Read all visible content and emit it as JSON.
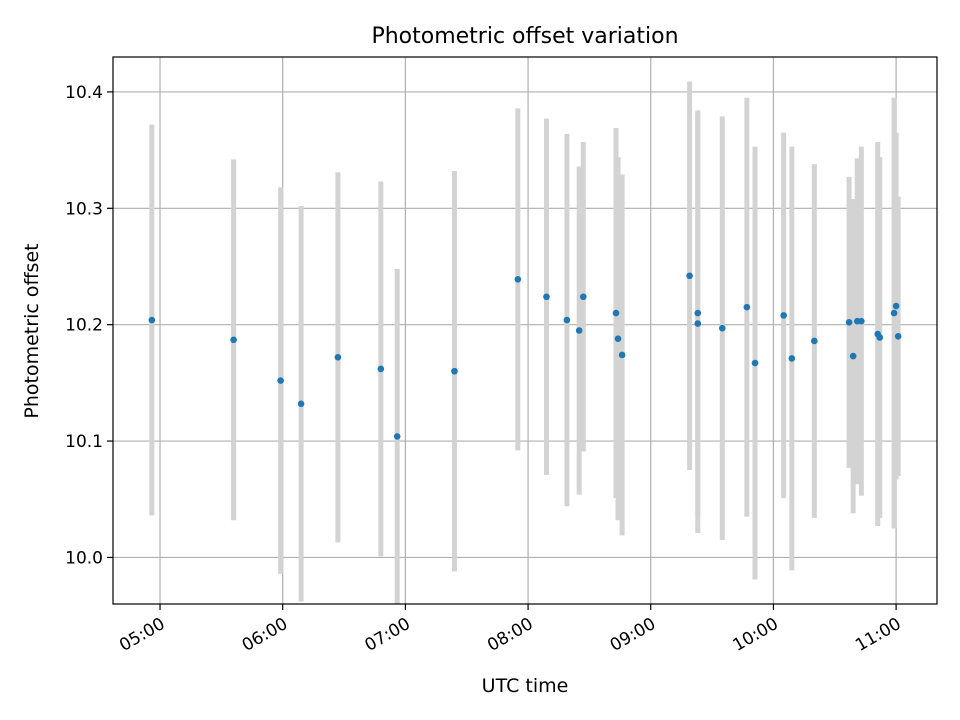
{
  "chart_data": {
    "type": "scatter",
    "title": "Photometric offset variation",
    "xlabel": "UTC time",
    "ylabel": "Photometric offset",
    "grid": true,
    "x_tick_labels": [
      "05:00",
      "06:00",
      "07:00",
      "08:00",
      "09:00",
      "10:00",
      "11:00"
    ],
    "x_tick_values": [
      "05:00",
      "06:00",
      "07:00",
      "08:00",
      "09:00",
      "10:00",
      "11:00"
    ],
    "y_ticks": [
      10.0,
      10.1,
      10.2,
      10.3,
      10.4
    ],
    "y_tick_labels": [
      "10.0",
      "10.1",
      "10.2",
      "10.3",
      "10.4"
    ],
    "xlim": [
      "04:37",
      "11:20"
    ],
    "ylim": [
      9.96,
      10.43
    ],
    "colors": {
      "point": "#1f77b4",
      "errorbar": "#d3d3d3",
      "grid": "#b0b0b0"
    },
    "points": [
      {
        "x": "04:56",
        "y": 10.204,
        "err": 0.168
      },
      {
        "x": "05:36",
        "y": 10.187,
        "err": 0.155
      },
      {
        "x": "05:59",
        "y": 10.152,
        "err": 0.166
      },
      {
        "x": "06:09",
        "y": 10.132,
        "err": 0.17
      },
      {
        "x": "06:27",
        "y": 10.172,
        "err": 0.159
      },
      {
        "x": "06:48",
        "y": 10.162,
        "err": 0.161
      },
      {
        "x": "06:56",
        "y": 10.104,
        "err": 0.144
      },
      {
        "x": "07:24",
        "y": 10.16,
        "err": 0.172
      },
      {
        "x": "07:55",
        "y": 10.239,
        "err": 0.147
      },
      {
        "x": "08:09",
        "y": 10.224,
        "err": 0.153
      },
      {
        "x": "08:19",
        "y": 10.204,
        "err": 0.16
      },
      {
        "x": "08:25",
        "y": 10.195,
        "err": 0.141
      },
      {
        "x": "08:27",
        "y": 10.224,
        "err": 0.133
      },
      {
        "x": "08:43",
        "y": 10.21,
        "err": 0.159
      },
      {
        "x": "08:44",
        "y": 10.188,
        "err": 0.156
      },
      {
        "x": "08:46",
        "y": 10.174,
        "err": 0.155
      },
      {
        "x": "09:19",
        "y": 10.242,
        "err": 0.167
      },
      {
        "x": "09:23",
        "y": 10.21,
        "err": 0.174
      },
      {
        "x": "09:23",
        "y": 10.201,
        "err": 0.18
      },
      {
        "x": "09:35",
        "y": 10.197,
        "err": 0.182
      },
      {
        "x": "09:47",
        "y": 10.215,
        "err": 0.18
      },
      {
        "x": "09:51",
        "y": 10.167,
        "err": 0.186
      },
      {
        "x": "10:05",
        "y": 10.208,
        "err": 0.157
      },
      {
        "x": "10:09",
        "y": 10.171,
        "err": 0.182
      },
      {
        "x": "10:20",
        "y": 10.186,
        "err": 0.152
      },
      {
        "x": "10:37",
        "y": 10.202,
        "err": 0.125
      },
      {
        "x": "10:39",
        "y": 10.173,
        "err": 0.135
      },
      {
        "x": "10:41",
        "y": 10.203,
        "err": 0.14
      },
      {
        "x": "10:43",
        "y": 10.203,
        "err": 0.15
      },
      {
        "x": "10:51",
        "y": 10.192,
        "err": 0.165
      },
      {
        "x": "10:52",
        "y": 10.189,
        "err": 0.155
      },
      {
        "x": "10:59",
        "y": 10.21,
        "err": 0.185
      },
      {
        "x": "11:00",
        "y": 10.216,
        "err": 0.149
      },
      {
        "x": "11:01",
        "y": 10.19,
        "err": 0.12
      }
    ]
  }
}
